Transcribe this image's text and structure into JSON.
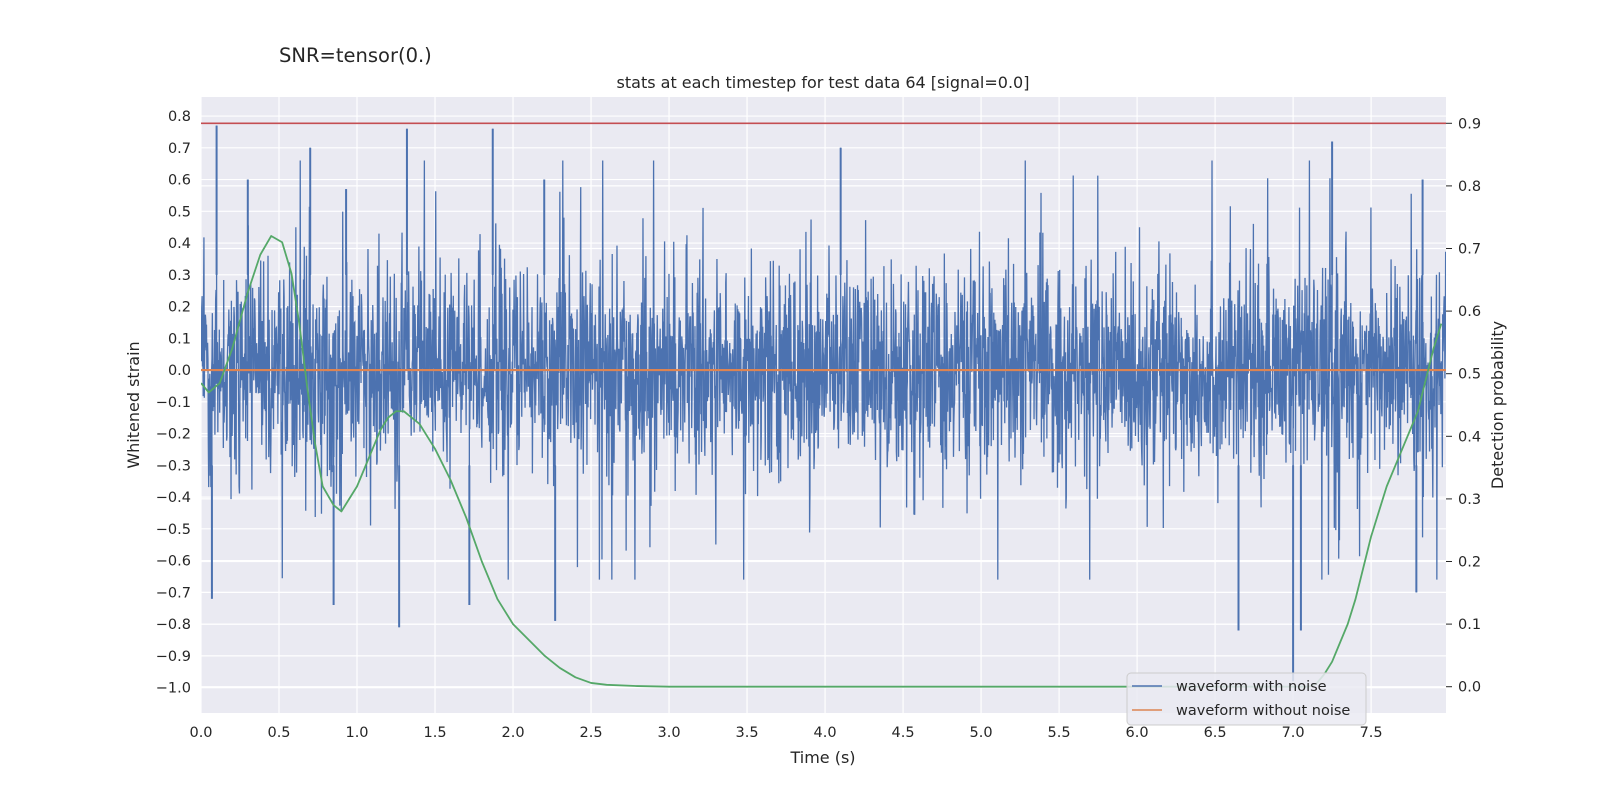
{
  "figure": {
    "suptitle": "SNR=tensor(0.)"
  },
  "chart_data": {
    "type": "line",
    "title": "stats at each timestep for test data 64 [signal=0.0]",
    "xlabel": "Time (s)",
    "ylabel": "Whitened strain",
    "y2label": "Detection probability",
    "xlim": [
      0.0,
      7.98
    ],
    "ylim": [
      -1.08,
      0.86
    ],
    "y2lim": [
      -0.042,
      0.942
    ],
    "xticks": [
      "0.0",
      "0.5",
      "1.0",
      "1.5",
      "2.0",
      "2.5",
      "3.0",
      "3.5",
      "4.0",
      "4.5",
      "5.0",
      "5.5",
      "6.0",
      "6.5",
      "7.0",
      "7.5"
    ],
    "yticks": [
      "0.8",
      "0.7",
      "0.6",
      "0.5",
      "0.4",
      "0.3",
      "0.2",
      "0.1",
      "0.0",
      "−0.1",
      "−0.2",
      "−0.3",
      "−0.4",
      "−0.5",
      "−0.6",
      "−0.7",
      "−0.8",
      "−0.9",
      "−1.0"
    ],
    "y2ticks": [
      "0.9",
      "0.8",
      "0.7",
      "0.6",
      "0.5",
      "0.4",
      "0.3",
      "0.2",
      "0.1",
      "0.0"
    ],
    "grid": true,
    "legend_position": "lower-right",
    "series": [
      {
        "name": "waveform with noise",
        "axis": "left",
        "color": "#4c72b0",
        "kind": "dense noise, core band approx ±0.2, typical extremes approx ±0.5",
        "peaks": [
          {
            "x": 0.1,
            "y": 0.77
          },
          {
            "x": 0.3,
            "y": 0.6
          },
          {
            "x": 0.7,
            "y": 0.7
          },
          {
            "x": 0.93,
            "y": 0.57
          },
          {
            "x": 1.32,
            "y": 0.76
          },
          {
            "x": 1.87,
            "y": 0.76
          },
          {
            "x": 2.2,
            "y": 0.6
          },
          {
            "x": 4.1,
            "y": 0.7
          },
          {
            "x": 7.25,
            "y": 0.72
          },
          {
            "x": 7.83,
            "y": 0.6
          }
        ],
        "troughs": [
          {
            "x": 0.07,
            "y": -0.72
          },
          {
            "x": 0.85,
            "y": -0.74
          },
          {
            "x": 1.27,
            "y": -0.81
          },
          {
            "x": 1.72,
            "y": -0.74
          },
          {
            "x": 2.27,
            "y": -0.79
          },
          {
            "x": 6.65,
            "y": -0.82
          },
          {
            "x": 7.0,
            "y": -0.98
          },
          {
            "x": 7.05,
            "y": -0.82
          },
          {
            "x": 7.79,
            "y": -0.7
          }
        ]
      },
      {
        "name": "waveform without noise",
        "axis": "left",
        "color": "#dd8452",
        "x": [
          0.0,
          7.98
        ],
        "y": [
          0.0,
          0.0
        ]
      },
      {
        "name": "",
        "axis": "right",
        "color": "#55a868",
        "x": [
          0.0,
          0.05,
          0.12,
          0.2,
          0.3,
          0.38,
          0.45,
          0.52,
          0.58,
          0.63,
          0.68,
          0.73,
          0.78,
          0.85,
          0.9,
          0.95,
          1.0,
          1.05,
          1.1,
          1.15,
          1.2,
          1.25,
          1.3,
          1.35,
          1.4,
          1.45,
          1.5,
          1.6,
          1.7,
          1.8,
          1.9,
          2.0,
          2.1,
          2.2,
          2.3,
          2.4,
          2.5,
          2.6,
          2.8,
          3.0,
          3.5,
          4.0,
          4.5,
          5.0,
          5.5,
          6.0,
          6.5,
          6.8,
          7.0,
          7.1,
          7.15,
          7.2,
          7.25,
          7.3,
          7.35,
          7.4,
          7.45,
          7.5,
          7.6,
          7.7,
          7.8,
          7.85,
          7.9,
          7.95
        ],
        "y": [
          0.485,
          0.47,
          0.485,
          0.54,
          0.63,
          0.69,
          0.72,
          0.71,
          0.66,
          0.58,
          0.48,
          0.39,
          0.32,
          0.29,
          0.28,
          0.3,
          0.32,
          0.35,
          0.38,
          0.41,
          0.43,
          0.44,
          0.44,
          0.43,
          0.42,
          0.4,
          0.38,
          0.33,
          0.27,
          0.2,
          0.14,
          0.1,
          0.075,
          0.05,
          0.03,
          0.015,
          0.006,
          0.003,
          0.001,
          0.0,
          0.0,
          0.0,
          0.0,
          0.0,
          0.0,
          0.0,
          0.0,
          0.0,
          0.0,
          0.0,
          0.005,
          0.02,
          0.04,
          0.07,
          0.1,
          0.14,
          0.19,
          0.24,
          0.32,
          0.38,
          0.44,
          0.49,
          0.54,
          0.58
        ]
      }
    ],
    "hlines": [
      {
        "axis": "right",
        "y": 0.9,
        "color": "#c44e52"
      }
    ]
  },
  "legend": {
    "items": [
      {
        "label": "waveform with noise",
        "color": "#4c72b0"
      },
      {
        "label": "waveform without noise",
        "color": "#dd8452"
      }
    ]
  },
  "colors": {
    "axes_bg": "#eaeaf2",
    "grid": "#ffffff",
    "text": "#262626",
    "noise": "#4c72b0",
    "clean": "#dd8452",
    "probability": "#55a868",
    "threshold": "#c44e52"
  }
}
